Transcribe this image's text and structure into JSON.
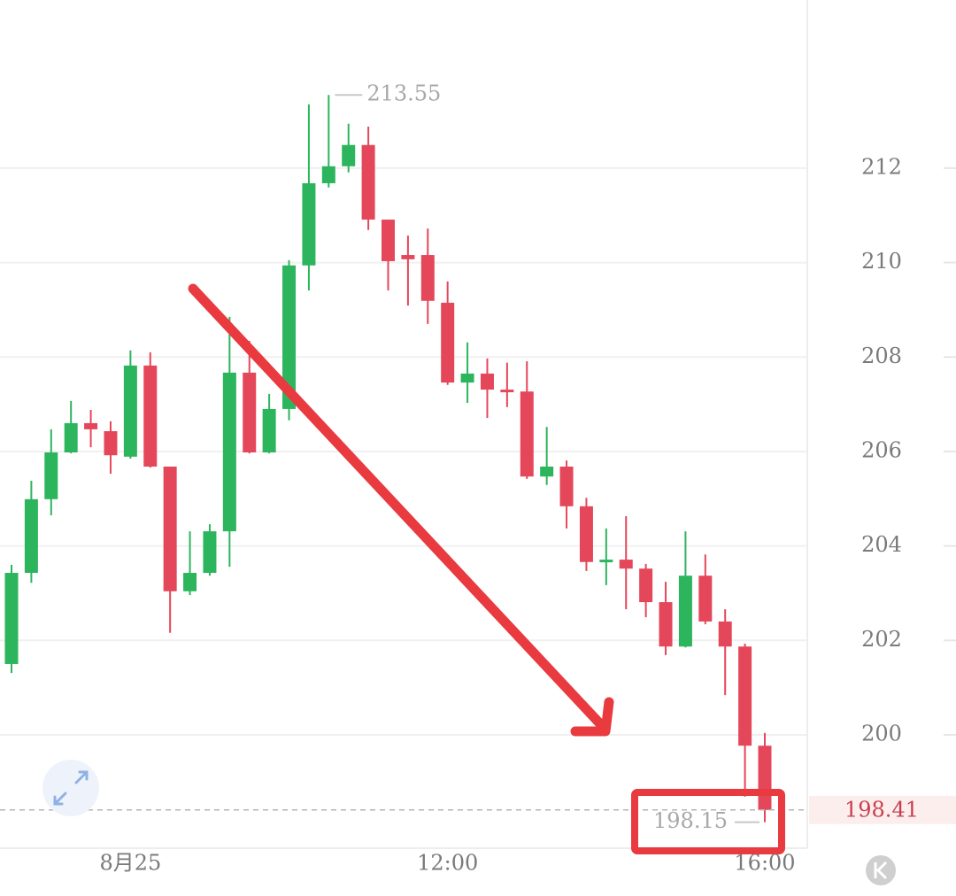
{
  "chart_data": {
    "type": "candlestick",
    "categories": [
      null,
      null,
      null,
      null,
      null,
      null,
      "8月25",
      null,
      null,
      null,
      null,
      null,
      null,
      null,
      null,
      null,
      null,
      null,
      null,
      null,
      null,
      null,
      "12:00",
      null,
      null,
      null,
      null,
      null,
      null,
      null,
      null,
      null,
      null,
      null,
      null,
      null,
      null,
      null,
      "16:00"
    ],
    "open": [
      201.5,
      203.43,
      204.99,
      205.98,
      206.6,
      206.43,
      205.89,
      207.82,
      205.68,
      203.04,
      203.43,
      204.31,
      207.67,
      205.98,
      206.9,
      209.94,
      211.68,
      212.04,
      212.49,
      210.91,
      210.16,
      210.16,
      209.15,
      207.46,
      207.65,
      207.31,
      207.27,
      205.47,
      205.68,
      204.84,
      203.66,
      203.71,
      203.52,
      202.81,
      201.87,
      203.37,
      202.4,
      201.87,
      199.77
    ],
    "high": [
      203.6,
      205.38,
      206.47,
      207.07,
      206.88,
      206.64,
      208.14,
      208.1,
      205.68,
      204.31,
      204.46,
      208.85,
      208.34,
      207.22,
      210.05,
      213.35,
      213.55,
      212.94,
      212.88,
      210.91,
      210.57,
      210.72,
      209.6,
      208.31,
      207.97,
      207.88,
      207.91,
      206.52,
      205.81,
      205.02,
      204.37,
      204.63,
      203.62,
      203.24,
      204.31,
      203.82,
      202.66,
      201.93,
      200.04
    ],
    "low": [
      201.31,
      203.22,
      204.65,
      205.96,
      206.09,
      205.53,
      205.85,
      205.66,
      202.16,
      202.96,
      203.37,
      203.56,
      205.96,
      205.96,
      206.66,
      209.41,
      211.59,
      211.91,
      210.69,
      209.41,
      209.09,
      208.7,
      207.41,
      207.03,
      206.71,
      206.94,
      205.42,
      205.29,
      204.37,
      203.47,
      203.17,
      202.66,
      202.49,
      201.69,
      201.85,
      202.34,
      200.84,
      198.69,
      198.15
    ],
    "close": [
      203.43,
      204.99,
      205.98,
      206.6,
      206.47,
      205.92,
      207.82,
      205.68,
      203.04,
      203.43,
      204.31,
      207.67,
      205.98,
      206.9,
      209.94,
      211.68,
      212.04,
      212.49,
      210.91,
      210.03,
      210.07,
      209.19,
      207.46,
      207.65,
      207.31,
      207.27,
      205.47,
      205.68,
      204.84,
      203.66,
      203.71,
      203.52,
      202.81,
      201.87,
      203.37,
      202.4,
      201.87,
      199.77,
      198.41
    ],
    "up_color": "#2db55d",
    "down_color": "#e5475a",
    "ylim": [
      197.6,
      215.56
    ],
    "yticks": [
      200,
      202,
      204,
      206,
      208,
      210,
      212
    ],
    "grid": true
  }
}
